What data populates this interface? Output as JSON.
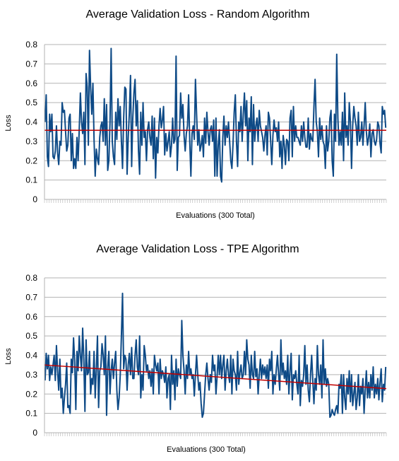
{
  "chart_data": [
    {
      "type": "line",
      "title": "Average Validation Loss - Random Algorithm",
      "xlabel": "Evaluations (300 Total)",
      "ylabel": "Loss",
      "ylim": [
        0,
        0.8
      ],
      "yticks": [
        "0",
        "0.1",
        "0.2",
        "0.3",
        "0.4",
        "0.5",
        "0.6",
        "0.7",
        "0.8"
      ],
      "grid": true,
      "series_color": "#0e4a86",
      "trend_color": "#c00000",
      "x_count": 300,
      "series": [
        {
          "values": [
            0.4,
            0.54,
            0.22,
            0.17,
            0.44,
            0.35,
            0.44,
            0.22,
            0.21,
            0.25,
            0.38,
            0.24,
            0.18,
            0.3,
            0.28,
            0.5,
            0.45,
            0.46,
            0.35,
            0.25,
            0.28,
            0.42,
            0.44,
            0.2,
            0.34,
            0.16,
            0.21,
            0.16,
            0.32,
            0.2,
            0.36,
            0.55,
            0.4,
            0.34,
            0.45,
            0.18,
            0.65,
            0.58,
            0.28,
            0.77,
            0.58,
            0.44,
            0.6,
            0.31,
            0.12,
            0.26,
            0.21,
            0.18,
            0.32,
            0.38,
            0.4,
            0.3,
            0.52,
            0.28,
            0.49,
            0.15,
            0.2,
            0.4,
            0.78,
            0.3,
            0.22,
            0.18,
            0.45,
            0.31,
            0.52,
            0.38,
            0.48,
            0.3,
            0.16,
            0.42,
            0.58,
            0.57,
            0.13,
            0.32,
            0.45,
            0.64,
            0.17,
            0.42,
            0.55,
            0.62,
            0.38,
            0.51,
            0.25,
            0.13,
            0.45,
            0.28,
            0.5,
            0.32,
            0.35,
            0.2,
            0.36,
            0.4,
            0.32,
            0.28,
            0.43,
            0.21,
            0.42,
            0.11,
            0.32,
            0.24,
            0.38,
            0.47,
            0.37,
            0.41,
            0.48,
            0.23,
            0.34,
            0.25,
            0.3,
            0.35,
            0.22,
            0.28,
            0.42,
            0.29,
            0.31,
            0.74,
            0.15,
            0.32,
            0.33,
            0.55,
            0.42,
            0.49,
            0.33,
            0.25,
            0.34,
            0.38,
            0.54,
            0.3,
            0.12,
            0.34,
            0.38,
            0.31,
            0.62,
            0.44,
            0.28,
            0.36,
            0.25,
            0.28,
            0.33,
            0.22,
            0.42,
            0.29,
            0.45,
            0.35,
            0.28,
            0.36,
            0.38,
            0.3,
            0.41,
            0.12,
            0.42,
            0.12,
            0.28,
            0.36,
            0.12,
            0.09,
            0.32,
            0.43,
            0.28,
            0.38,
            0.32,
            0.4,
            0.3,
            0.2,
            0.16,
            0.29,
            0.45,
            0.54,
            0.3,
            0.17,
            0.4,
            0.35,
            0.48,
            0.3,
            0.44,
            0.55,
            0.38,
            0.51,
            0.2,
            0.42,
            0.35,
            0.53,
            0.18,
            0.49,
            0.3,
            0.38,
            0.42,
            0.3,
            0.46,
            0.38,
            0.35,
            0.32,
            0.25,
            0.33,
            0.38,
            0.23,
            0.45,
            0.42,
            0.3,
            0.18,
            0.33,
            0.41,
            0.35,
            0.37,
            0.3,
            0.4,
            0.22,
            0.3,
            0.16,
            0.33,
            0.28,
            0.18,
            0.31,
            0.3,
            0.2,
            0.42,
            0.46,
            0.22,
            0.48,
            0.3,
            0.38,
            0.32,
            0.32,
            0.3,
            0.28,
            0.38,
            0.3,
            0.4,
            0.32,
            0.27,
            0.27,
            0.42,
            0.26,
            0.34,
            0.31,
            0.3,
            0.48,
            0.62,
            0.4,
            0.35,
            0.22,
            0.42,
            0.31,
            0.38,
            0.3,
            0.28,
            0.16,
            0.38,
            0.25,
            0.3,
            0.42,
            0.46,
            0.2,
            0.12,
            0.44,
            0.3,
            0.75,
            0.42,
            0.28,
            0.35,
            0.28,
            0.45,
            0.2,
            0.55,
            0.32,
            0.38,
            0.28,
            0.5,
            0.4,
            0.16,
            0.38,
            0.48,
            0.42,
            0.38,
            0.28,
            0.45,
            0.3,
            0.32,
            0.4,
            0.28,
            0.38,
            0.5,
            0.35,
            0.28,
            0.32,
            0.39,
            0.22,
            0.34,
            0.36,
            0.3,
            0.28,
            0.31,
            0.4,
            0.38,
            0.29,
            0.24,
            0.48,
            0.44,
            0.46,
            0.37
          ]
        }
      ],
      "trend": {
        "start": 0.357,
        "end": 0.357
      }
    },
    {
      "type": "line",
      "title": "Average Validation Loss - TPE Algorithm",
      "xlabel": "Evaluations (300 Total)",
      "ylabel": "Loss",
      "ylim": [
        0,
        0.8
      ],
      "yticks": [
        "0",
        "0.1",
        "0.2",
        "0.3",
        "0.4",
        "0.5",
        "0.6",
        "0.7",
        "0.8"
      ],
      "grid": true,
      "series_color": "#0e4a86",
      "trend_color": "#c00000",
      "x_count": 300,
      "series": [
        {
          "values": [
            0.27,
            0.41,
            0.33,
            0.4,
            0.27,
            0.34,
            0.3,
            0.35,
            0.4,
            0.27,
            0.45,
            0.32,
            0.22,
            0.38,
            0.18,
            0.23,
            0.1,
            0.18,
            0.25,
            0.36,
            0.13,
            0.14,
            0.1,
            0.38,
            0.31,
            0.49,
            0.37,
            0.12,
            0.42,
            0.32,
            0.5,
            0.4,
            0.32,
            0.54,
            0.38,
            0.11,
            0.48,
            0.3,
            0.31,
            0.42,
            0.2,
            0.28,
            0.25,
            0.42,
            0.18,
            0.33,
            0.5,
            0.13,
            0.32,
            0.34,
            0.46,
            0.4,
            0.3,
            0.5,
            0.09,
            0.34,
            0.42,
            0.2,
            0.32,
            0.38,
            0.28,
            0.36,
            0.42,
            0.22,
            0.12,
            0.18,
            0.3,
            0.5,
            0.72,
            0.33,
            0.4,
            0.38,
            0.22,
            0.35,
            0.41,
            0.3,
            0.44,
            0.28,
            0.28,
            0.4,
            0.48,
            0.34,
            0.3,
            0.5,
            0.18,
            0.3,
            0.22,
            0.45,
            0.4,
            0.32,
            0.35,
            0.28,
            0.32,
            0.24,
            0.33,
            0.2,
            0.4,
            0.35,
            0.32,
            0.36,
            0.2,
            0.38,
            0.28,
            0.32,
            0.3,
            0.26,
            0.34,
            0.18,
            0.28,
            0.3,
            0.12,
            0.4,
            0.25,
            0.32,
            0.17,
            0.38,
            0.24,
            0.33,
            0.3,
            0.28,
            0.58,
            0.4,
            0.32,
            0.2,
            0.35,
            0.28,
            0.42,
            0.3,
            0.33,
            0.28,
            0.3,
            0.19,
            0.3,
            0.4,
            0.3,
            0.22,
            0.26,
            0.15,
            0.08,
            0.1,
            0.2,
            0.3,
            0.36,
            0.28,
            0.22,
            0.3,
            0.26,
            0.4,
            0.32,
            0.35,
            0.2,
            0.29,
            0.4,
            0.3,
            0.4,
            0.28,
            0.35,
            0.4,
            0.22,
            0.32,
            0.38,
            0.3,
            0.26,
            0.4,
            0.2,
            0.38,
            0.32,
            0.3,
            0.22,
            0.42,
            0.25,
            0.31,
            0.35,
            0.28,
            0.3,
            0.42,
            0.3,
            0.48,
            0.38,
            0.35,
            0.23,
            0.4,
            0.3,
            0.28,
            0.42,
            0.29,
            0.33,
            0.2,
            0.3,
            0.38,
            0.28,
            0.35,
            0.3,
            0.34,
            0.28,
            0.35,
            0.23,
            0.38,
            0.32,
            0.42,
            0.2,
            0.3,
            0.25,
            0.33,
            0.4,
            0.3,
            0.22,
            0.48,
            0.3,
            0.36,
            0.28,
            0.32,
            0.25,
            0.4,
            0.2,
            0.32,
            0.41,
            0.17,
            0.3,
            0.28,
            0.32,
            0.25,
            0.2,
            0.4,
            0.14,
            0.27,
            0.24,
            0.3,
            0.45,
            0.25,
            0.35,
            0.22,
            0.16,
            0.3,
            0.4,
            0.27,
            0.15,
            0.28,
            0.22,
            0.45,
            0.3,
            0.25,
            0.35,
            0.18,
            0.48,
            0.25,
            0.33,
            0.24,
            0.28,
            0.25,
            0.08,
            0.09,
            0.12,
            0.1,
            0.09,
            0.12,
            0.14,
            0.1,
            0.25,
            0.23,
            0.3,
            0.1,
            0.3,
            0.18,
            0.12,
            0.28,
            0.2,
            0.32,
            0.16,
            0.3,
            0.14,
            0.2,
            0.26,
            0.12,
            0.18,
            0.3,
            0.14,
            0.24,
            0.2,
            0.28,
            0.1,
            0.22,
            0.32,
            0.18,
            0.26,
            0.18,
            0.3,
            0.22,
            0.34,
            0.18,
            0.25,
            0.2,
            0.28,
            0.17,
            0.26,
            0.33,
            0.16,
            0.25,
            0.22,
            0.34
          ]
        }
      ],
      "trend": {
        "start": 0.35,
        "end": 0.228
      }
    }
  ]
}
